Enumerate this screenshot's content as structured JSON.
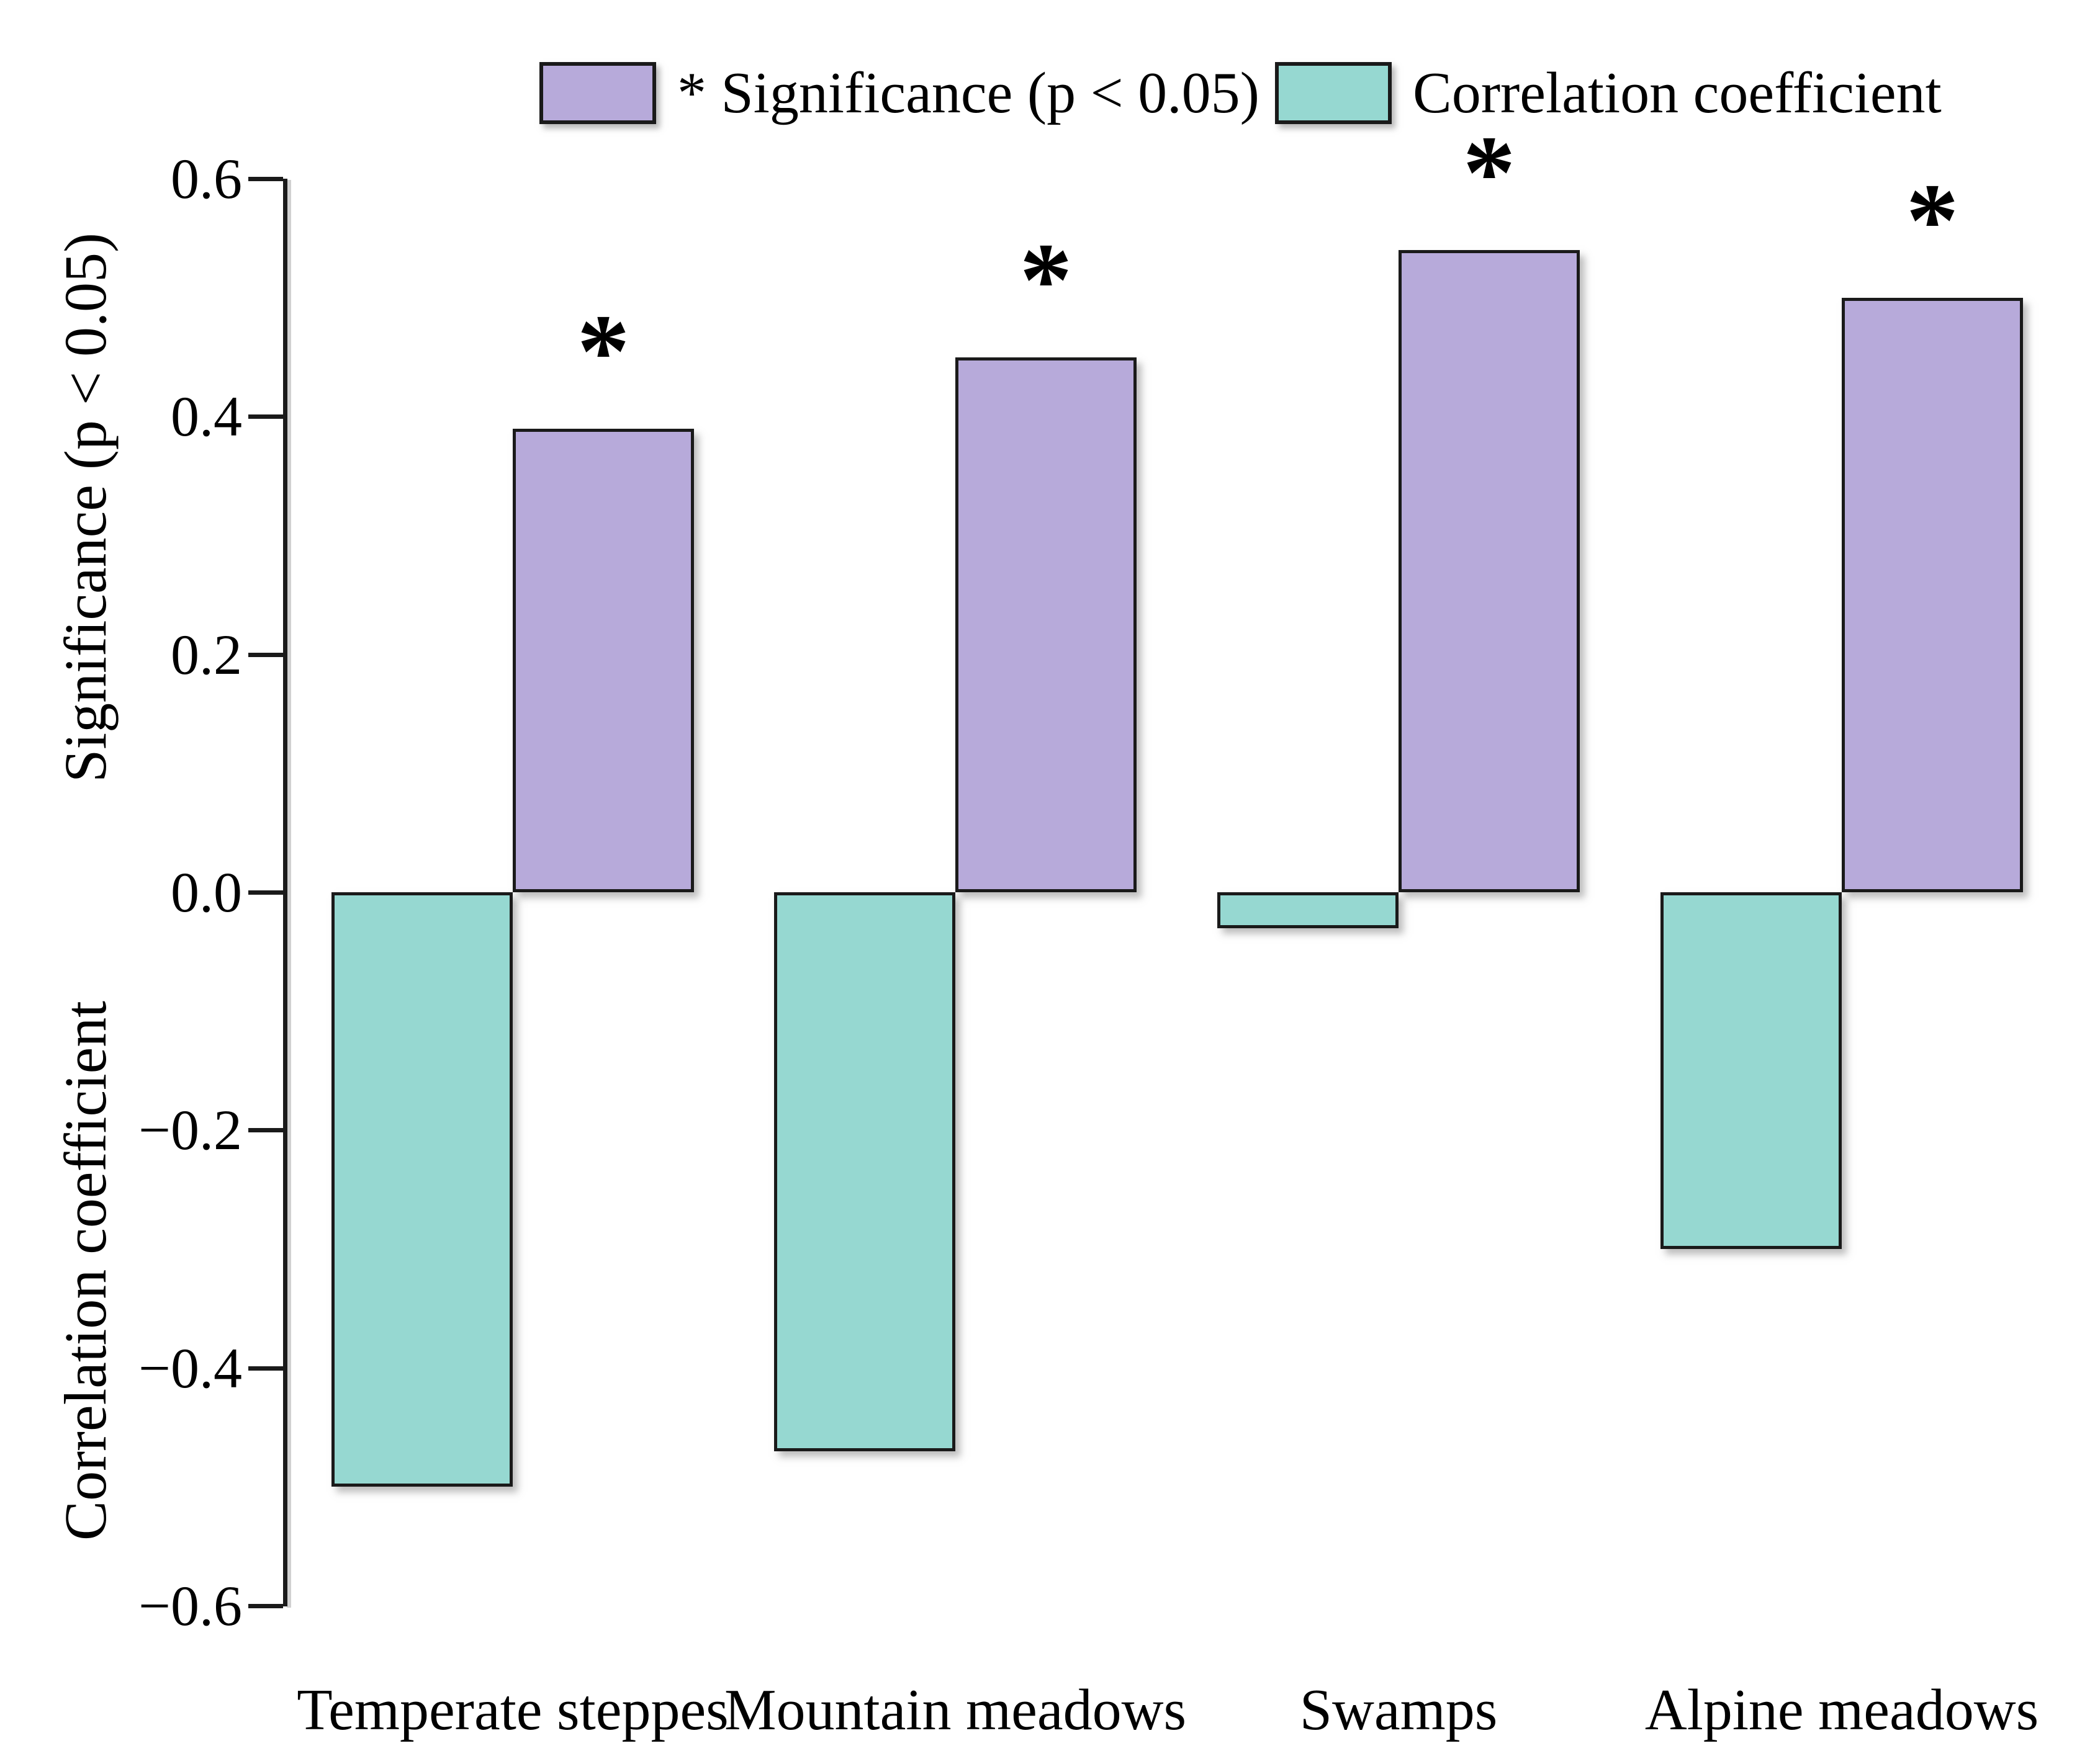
{
  "legend": {
    "items": [
      {
        "label": "* Significance (p < 0.05)",
        "color": "#b7aada"
      },
      {
        "label": "Correlation coefficient",
        "color": "#96d8d1"
      }
    ]
  },
  "y_axis": {
    "top_label": "Significance (p < 0.05)",
    "bottom_label": "Correlation coefficient",
    "ticks": [
      {
        "label": "0.6",
        "value": 0.6
      },
      {
        "label": "0.4",
        "value": 0.4
      },
      {
        "label": "0.2",
        "value": 0.2
      },
      {
        "label": "0.0",
        "value": 0.0
      },
      {
        "label": "−0.2",
        "value": -0.2
      },
      {
        "label": "−0.4",
        "value": -0.4
      },
      {
        "label": "−0.6",
        "value": -0.6
      }
    ]
  },
  "chart_data": {
    "type": "bar",
    "categories": [
      "Temperate steppes",
      "Mountain meadows",
      "Swamps",
      "Alpine meadows"
    ],
    "series": [
      {
        "name": "Significance (p < 0.05)",
        "color": "#b7aada",
        "values": [
          0.39,
          0.45,
          0.54,
          0.5
        ],
        "markers": [
          "*",
          "*",
          "*",
          "*"
        ]
      },
      {
        "name": "Correlation coefficient",
        "color": "#96d8d1",
        "values": [
          -0.5,
          -0.47,
          -0.03,
          -0.3
        ]
      }
    ],
    "ylim": [
      -0.6,
      0.6
    ],
    "grid": false,
    "legend_position": "top",
    "significance_note": "* marks bars significant at p < 0.05"
  }
}
